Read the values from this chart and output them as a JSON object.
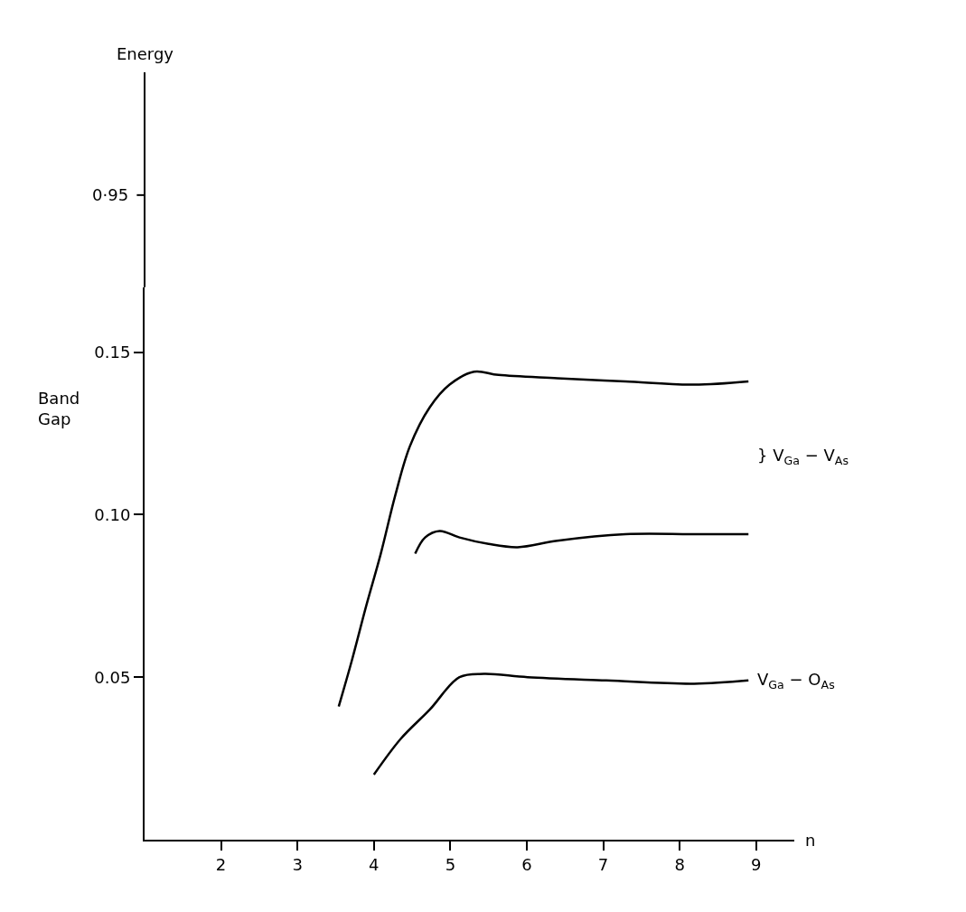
{
  "chart_data": {
    "type": "line",
    "xlabel": "n",
    "ylabel": "Band Gap",
    "xlim": [
      1,
      9.5
    ],
    "xticks": [
      2,
      3,
      4,
      5,
      6,
      7,
      8,
      9
    ],
    "ylim": [
      0,
      0.17
    ],
    "yticks": [
      {
        "value": 0.05,
        "label": "0.05"
      },
      {
        "value": 0.1,
        "label": "0.10"
      },
      {
        "value": 0.15,
        "label": "0.15"
      }
    ],
    "marker": "none",
    "line_style": "solid",
    "series": [
      {
        "color": "#000000",
        "x": [
          3.54,
          3.71,
          3.9,
          4.09,
          4.28,
          4.47,
          4.73,
          4.99,
          5.31,
          5.63,
          6.4,
          7.29,
          8.19,
          8.9
        ],
        "values": [
          0.041,
          0.055,
          0.072,
          0.088,
          0.106,
          0.121,
          0.133,
          0.14,
          0.144,
          0.143,
          0.142,
          0.141,
          0.14,
          0.141
        ]
      },
      {
        "color": "#000000",
        "x": [
          4.54,
          4.67,
          4.86,
          5.12,
          5.5,
          5.88,
          6.4,
          7.29,
          8.19,
          8.9
        ],
        "values": [
          0.088,
          0.093,
          0.095,
          0.093,
          0.091,
          0.09,
          0.092,
          0.094,
          0.094,
          0.094
        ]
      },
      {
        "color": "#000000",
        "x": [
          4.0,
          4.35,
          4.73,
          5.12,
          5.44,
          6.01,
          7.04,
          8.19,
          8.9
        ],
        "values": [
          0.02,
          0.031,
          0.04,
          0.05,
          0.051,
          0.05,
          0.049,
          0.048,
          0.049
        ]
      }
    ],
    "annotations": [
      "Energy",
      "0·95",
      "} V$_{Ga}$ − V$_{As}$",
      "V$_{Ga}$ − O$_{As}$"
    ]
  }
}
